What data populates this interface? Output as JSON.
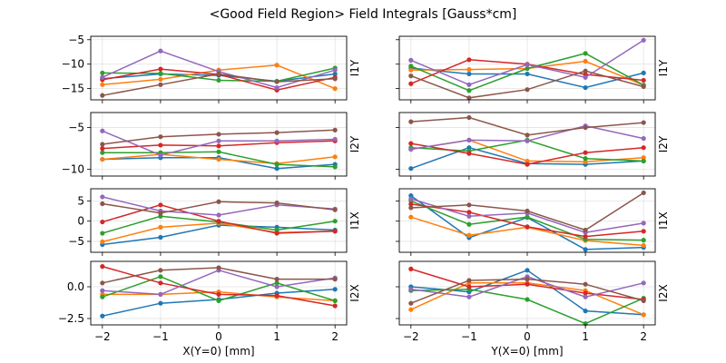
{
  "chart_data": {
    "type": "line",
    "title": "<Good Field Region> Field Integrals [Gauss*cm]",
    "series_colors": [
      "#1f77b4",
      "#ff7f0e",
      "#2ca02c",
      "#d62728",
      "#9467bd",
      "#8c564b"
    ],
    "x": [
      -2,
      -1,
      0,
      1,
      2
    ],
    "x_ticks": [
      "−2",
      "−1",
      "0",
      "1",
      "2"
    ],
    "column_xlabels": [
      "X(Y=0) [mm]",
      "Y(X=0) [mm]"
    ],
    "grid": true,
    "xlim": [
      -2.2,
      2.2
    ],
    "rows": [
      {
        "ylabel": "I1Y",
        "ylim": [
          -17.3,
          -4.3
        ],
        "yticks": [
          -15,
          -10,
          -5
        ],
        "ytick_labels": [
          "−15",
          "−10",
          "−5"
        ],
        "panels": [
          {
            "series": [
              {
                "values": [
                  -13.0,
                  -12.0,
                  -12.3,
                  -13.5,
                  -12.0
                ]
              },
              {
                "values": [
                  -14.2,
                  -13.1,
                  -11.2,
                  -10.2,
                  -15.0
                ]
              },
              {
                "values": [
                  -11.8,
                  -11.9,
                  -13.3,
                  -13.5,
                  -10.8
                ]
              },
              {
                "values": [
                  -13.2,
                  -11.0,
                  -12.1,
                  -15.3,
                  -12.7
                ]
              },
              {
                "values": [
                  -12.7,
                  -7.3,
                  -11.5,
                  -14.8,
                  -11.2
                ]
              },
              {
                "values": [
                  -16.4,
                  -14.2,
                  -12.0,
                  -13.6,
                  -13.0
                ]
              }
            ]
          },
          {
            "series": [
              {
                "values": [
                  -10.8,
                  -12.0,
                  -12.0,
                  -14.8,
                  -11.8
                ]
              },
              {
                "values": [
                  -11.2,
                  -11.1,
                  -10.9,
                  -9.4,
                  -14.3
                ]
              },
              {
                "values": [
                  -10.4,
                  -15.4,
                  -10.9,
                  -7.8,
                  -14.3
                ]
              },
              {
                "values": [
                  -14.0,
                  -9.1,
                  -10.0,
                  -12.1,
                  -13.3
                ]
              },
              {
                "values": [
                  -9.2,
                  -14.2,
                  -10.1,
                  -12.7,
                  -5.1
                ]
              },
              {
                "values": [
                  -12.4,
                  -16.9,
                  -15.2,
                  -11.4,
                  -14.6
                ]
              }
            ]
          }
        ]
      },
      {
        "ylabel": "I2Y",
        "ylim": [
          -10.8,
          -3.2
        ],
        "yticks": [
          -10,
          -5
        ],
        "ytick_labels": [
          "−10",
          "−5"
        ],
        "panels": [
          {
            "series": [
              {
                "values": [
                  -8.8,
                  -8.6,
                  -8.6,
                  -9.9,
                  -9.4
                ]
              },
              {
                "values": [
                  -8.8,
                  -8.2,
                  -8.8,
                  -9.3,
                  -8.5
                ]
              },
              {
                "values": [
                  -8.0,
                  -8.0,
                  -7.9,
                  -9.4,
                  -9.7
                ]
              },
              {
                "values": [
                  -7.5,
                  -7.1,
                  -7.2,
                  -6.8,
                  -6.6
                ]
              },
              {
                "values": [
                  -5.4,
                  -8.3,
                  -6.6,
                  -6.6,
                  -6.4
                ]
              },
              {
                "values": [
                  -7.0,
                  -6.1,
                  -5.8,
                  -5.6,
                  -5.3
                ]
              }
            ]
          },
          {
            "series": [
              {
                "values": [
                  -9.9,
                  -7.4,
                  -9.3,
                  -9.4,
                  -9.0
                ]
              },
              {
                "values": [
                  -7.6,
                  -6.5,
                  -9.0,
                  -9.1,
                  -8.6
                ]
              },
              {
                "values": [
                  -7.4,
                  -7.8,
                  -6.5,
                  -8.7,
                  -9.0
                ]
              },
              {
                "values": [
                  -6.9,
                  -8.1,
                  -9.4,
                  -8.0,
                  -7.4
                ]
              },
              {
                "values": [
                  -7.6,
                  -6.5,
                  -6.6,
                  -4.8,
                  -6.3
                ]
              },
              {
                "values": [
                  -4.3,
                  -3.8,
                  -5.9,
                  -5.0,
                  -4.4
                ]
              }
            ]
          }
        ]
      },
      {
        "ylabel": "I1X",
        "ylim": [
          -7.7,
          8.0
        ],
        "yticks": [
          -5,
          0,
          5
        ],
        "ytick_labels": [
          "−5",
          "0",
          "5"
        ],
        "panels": [
          {
            "series": [
              {
                "values": [
                  -5.8,
                  -4.0,
                  -1.0,
                  -1.5,
                  -2.2
                ]
              },
              {
                "values": [
                  -5.1,
                  -1.5,
                  -0.5,
                  -2.8,
                  -2.5
                ]
              },
              {
                "values": [
                  -3.0,
                  1.2,
                  -0.2,
                  -2.2,
                  0.0
                ]
              },
              {
                "values": [
                  -0.2,
                  4.0,
                  0.0,
                  -3.0,
                  -2.5
                ]
              },
              {
                "values": [
                  6.0,
                  2.5,
                  1.5,
                  4.0,
                  3.0
                ]
              },
              {
                "values": [
                  4.3,
                  2.0,
                  4.8,
                  4.5,
                  2.8
                ]
              }
            ]
          },
          {
            "series": [
              {
                "values": [
                  6.3,
                  -4.1,
                  0.9,
                  -7.0,
                  -6.5
                ]
              },
              {
                "values": [
                  1.0,
                  -3.5,
                  -1.5,
                  -4.8,
                  -6.0
                ]
              },
              {
                "values": [
                  5.0,
                  -0.8,
                  1.0,
                  -4.5,
                  -4.7
                ]
              },
              {
                "values": [
                  4.2,
                  2.2,
                  -1.4,
                  -3.8,
                  -2.5
                ]
              },
              {
                "values": [
                  5.5,
                  1.2,
                  2.0,
                  -2.8,
                  -0.5
                ]
              },
              {
                "values": [
                  3.3,
                  4.0,
                  2.5,
                  -2.2,
                  7.0
                ]
              }
            ]
          }
        ]
      },
      {
        "ylabel": "I2X",
        "ylim": [
          -3.0,
          2.0
        ],
        "yticks": [
          -2.5,
          0.0
        ],
        "ytick_labels": [
          "−2.5",
          "0.0"
        ],
        "panels": [
          {
            "series": [
              {
                "values": [
                  -2.3,
                  -1.3,
                  -1.0,
                  -0.5,
                  -0.2
                ]
              },
              {
                "values": [
                  -0.6,
                  -0.6,
                  -0.4,
                  -0.8,
                  -1.1
                ]
              },
              {
                "values": [
                  -0.8,
                  0.8,
                  -1.1,
                  0.3,
                  -1.1
                ]
              },
              {
                "values": [
                  1.6,
                  0.3,
                  -0.6,
                  -0.7,
                  -1.5
                ]
              },
              {
                "values": [
                  -0.3,
                  -0.6,
                  1.3,
                  0.0,
                  0.7
                ]
              },
              {
                "values": [
                  0.3,
                  1.3,
                  1.5,
                  0.6,
                  0.6
                ]
              }
            ]
          },
          {
            "series": [
              {
                "values": [
                  0.0,
                  -0.4,
                  1.3,
                  -1.9,
                  -2.2
                ]
              },
              {
                "values": [
                  -1.8,
                  0.3,
                  0.3,
                  -0.3,
                  -2.2
                ]
              },
              {
                "values": [
                  -0.3,
                  -0.2,
                  -1.0,
                  -2.9,
                  -0.9
                ]
              },
              {
                "values": [
                  1.4,
                  0.0,
                  0.2,
                  -0.5,
                  -1.0
                ]
              },
              {
                "values": [
                  -0.2,
                  -0.8,
                  0.8,
                  -0.8,
                  0.3
                ]
              },
              {
                "values": [
                  -1.3,
                  0.5,
                  0.6,
                  0.2,
                  -1.1
                ]
              }
            ]
          }
        ]
      }
    ]
  }
}
